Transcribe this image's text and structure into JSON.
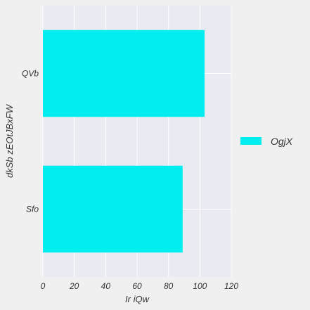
{
  "chart_data": {
    "type": "bar",
    "orientation": "horizontal",
    "categories": [
      "QVb",
      "Sfo"
    ],
    "series": [
      {
        "name": "OgjX",
        "values": [
          103,
          89
        ],
        "color": "#00eef0"
      }
    ],
    "xlabel": "Ir iQw",
    "ylabel": "dkSb zEOtJBxFW",
    "xlim": [
      0,
      120
    ],
    "xticks": [
      "0",
      "20",
      "40",
      "60",
      "80",
      "100",
      "120"
    ],
    "grid": true,
    "legend_position": "right"
  },
  "colors": {
    "background": "#f0f0f0",
    "plot_background": "#eaeaf2",
    "grid": "#ffffff"
  }
}
